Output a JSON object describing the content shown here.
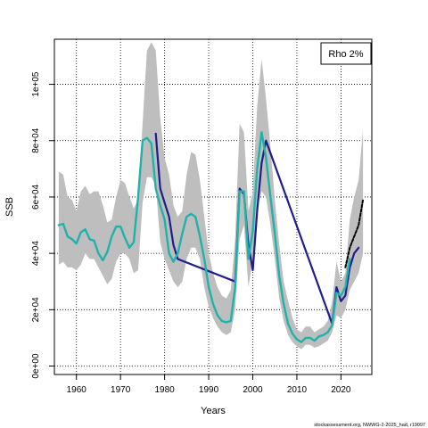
{
  "chart_data": {
    "type": "line",
    "xlabel": "Years",
    "ylabel": "SSB",
    "xlim": [
      1955,
      2027
    ],
    "ylim": [
      -3000,
      116000
    ],
    "x_ticks": [
      1960,
      1970,
      1980,
      1990,
      2000,
      2010,
      2020
    ],
    "y_ticks": [
      0,
      20000,
      40000,
      60000,
      80000,
      100000
    ],
    "y_tick_labels": [
      "0e+00",
      "2e+04",
      "4e+04",
      "6e+04",
      "8e+04",
      "1e+05"
    ],
    "grid": true,
    "legend": {
      "position": "top-right",
      "entries": [
        "Rho 2%"
      ]
    },
    "footer": "stockassessment.org, NWWG-2-2025_had, r19097",
    "series": [
      {
        "role": "confidence_band",
        "color": "#bebebe",
        "x": [
          1956,
          1957,
          1958,
          1959,
          1960,
          1961,
          1962,
          1963,
          1964,
          1965,
          1966,
          1967,
          1968,
          1969,
          1970,
          1971,
          1972,
          1973,
          1974,
          1975,
          1976,
          1977,
          1978,
          1979,
          1980,
          1981,
          1982,
          1983,
          1984,
          1985,
          1986,
          1987,
          1988,
          1989,
          1990,
          1991,
          1992,
          1993,
          1994,
          1995,
          1996,
          1997,
          1998,
          1999,
          2000,
          2001,
          2002,
          2003,
          2004,
          2005,
          2006,
          2007,
          2008,
          2009,
          2010,
          2011,
          2012,
          2013,
          2014,
          2015,
          2016,
          2017,
          2018,
          2019,
          2020,
          2021,
          2022,
          2023,
          2024,
          2025
        ],
        "upper": [
          69000,
          68000,
          60000,
          59000,
          55000,
          62000,
          64000,
          61000,
          62000,
          62000,
          57000,
          51000,
          52000,
          60000,
          66000,
          65000,
          60000,
          56000,
          59000,
          86000,
          112000,
          115000,
          112000,
          88000,
          74000,
          68000,
          57000,
          53000,
          55000,
          68000,
          76000,
          75000,
          66000,
          53000,
          40000,
          33000,
          28000,
          25000,
          24000,
          27000,
          45000,
          86000,
          83000,
          55000,
          62000,
          92000,
          109000,
          95000,
          78000,
          59000,
          43000,
          30000,
          23000,
          17000,
          13000,
          12000,
          14000,
          14000,
          12000,
          13000,
          14000,
          16000,
          23000,
          37000,
          30000,
          33000,
          52000,
          60000,
          66000,
          84000
        ],
        "lower": [
          36000,
          37000,
          35000,
          35000,
          34000,
          36000,
          40000,
          38000,
          38000,
          35000,
          32000,
          29000,
          31000,
          37000,
          40000,
          40000,
          38000,
          33000,
          34000,
          58000,
          67000,
          67000,
          64000,
          44000,
          38000,
          34000,
          30000,
          28000,
          30000,
          38000,
          42000,
          42000,
          38000,
          28000,
          21000,
          17000,
          14000,
          12000,
          11000,
          12000,
          20000,
          45000,
          50000,
          28000,
          38000,
          56000,
          62000,
          60000,
          50000,
          38000,
          24000,
          16000,
          11000,
          8500,
          7000,
          6000,
          7500,
          7500,
          6500,
          7000,
          8000,
          9000,
          12000,
          18000,
          17000,
          20000,
          27000,
          30000,
          33000,
          40000
        ]
      },
      {
        "role": "estimate",
        "color": "#20b2aa",
        "x": [
          1956,
          1957,
          1958,
          1959,
          1960,
          1961,
          1962,
          1963,
          1964,
          1965,
          1966,
          1967,
          1968,
          1969,
          1970,
          1971,
          1972,
          1973,
          1974,
          1975,
          1976,
          1977,
          1978,
          1979,
          1980,
          1981,
          1982,
          1983,
          1984,
          1985,
          1986,
          1987,
          1988,
          1989,
          1990,
          1991,
          1992,
          1993,
          1994,
          1995,
          1996,
          1997,
          1998,
          1999,
          2000,
          2001,
          2002,
          2003,
          2004,
          2005,
          2006,
          2007,
          2008,
          2009,
          2010,
          2011,
          2012,
          2013,
          2014,
          2015,
          2016,
          2017,
          2018,
          2019,
          2020,
          2021,
          2022
        ],
        "values": [
          50000,
          50500,
          46000,
          45000,
          43500,
          47500,
          48500,
          45000,
          44500,
          40000,
          37500,
          40500,
          46000,
          49500,
          49500,
          45500,
          42000,
          44000,
          60000,
          80000,
          81000,
          79000,
          63000,
          57000,
          52000,
          40000,
          37000,
          40000,
          47000,
          53000,
          54000,
          53000,
          46000,
          38000,
          28000,
          22000,
          18000,
          16000,
          15500,
          16000,
          28000,
          62000,
          62000,
          38000,
          48000,
          70000,
          83000,
          74000,
          60000,
          47000,
          32000,
          22000,
          15000,
          11500,
          9500,
          8500,
          10000,
          10000,
          9000,
          10500,
          11000,
          12000,
          14500,
          26000,
          25000,
          28000,
          38000
        ]
      },
      {
        "role": "retro_peels",
        "color": "#1e1e8c",
        "x": [
          1978,
          1979,
          1980,
          1981,
          1982,
          1983,
          1996,
          1997,
          1998,
          1999,
          2000,
          2001,
          2002,
          2003,
          2018,
          2019,
          2020,
          2021,
          2022,
          2023,
          2024
        ],
        "values": [
          82500,
          63000,
          58000,
          53000,
          43000,
          38000,
          30000,
          63000,
          61000,
          43000,
          34000,
          55000,
          72000,
          80000,
          15000,
          28000,
          23000,
          25000,
          35000,
          40000,
          42000
        ]
      },
      {
        "role": "forecast",
        "color": "#000000",
        "x": [
          2021,
          2022,
          2023,
          2024,
          2025
        ],
        "values": [
          35000,
          42000,
          46000,
          50000,
          59000
        ]
      }
    ]
  }
}
